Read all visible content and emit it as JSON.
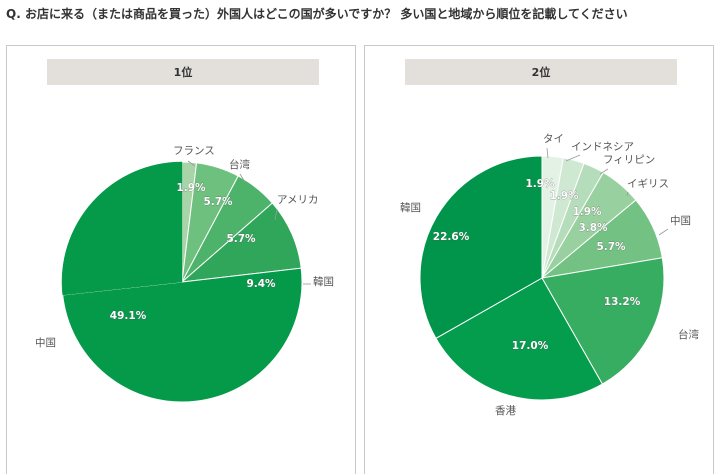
{
  "question": "Q. お店に来る（または商品を買った）外国人はどこの国が多いですか？ 多い国と地域から順位を記載してください",
  "panels": [
    {
      "header": "1位"
    },
    {
      "header": "2位"
    }
  ],
  "chart_data": [
    {
      "type": "pie",
      "title": "1位",
      "start": "12 o'clock",
      "direction": "clockwise",
      "slices": [
        {
          "label": "フランス",
          "value": 1.9,
          "value_label": "1.9%",
          "color": "#a8d5a8"
        },
        {
          "label": "台湾",
          "value": 5.7,
          "value_label": "5.7%",
          "color": "#6dc07e"
        },
        {
          "label": "アメリカ",
          "value": 5.7,
          "value_label": "5.7%",
          "color": "#4db36a"
        },
        {
          "label": "韓国",
          "value": 9.4,
          "value_label": "9.4%",
          "color": "#2fa65a"
        },
        {
          "label": "中国",
          "value": 49.1,
          "value_label": "49.1%",
          "color": "#05994a"
        }
      ]
    },
    {
      "type": "pie",
      "title": "2位",
      "start": "12 o'clock",
      "direction": "clockwise",
      "slices": [
        {
          "label": "タイ",
          "value": 1.9,
          "value_label": "1.9%",
          "color": "#e4f2e6"
        },
        {
          "label": "インドネシア",
          "value": 1.9,
          "value_label": "1.9%",
          "color": "#cfe8d2"
        },
        {
          "label": "フィリピン",
          "value": 1.9,
          "value_label": "1.9%",
          "color": "#b6ddbb"
        },
        {
          "label": "イギリス",
          "value": 3.8,
          "value_label": "3.8%",
          "color": "#98d09f"
        },
        {
          "label": "中国",
          "value": 5.7,
          "value_label": "5.7%",
          "color": "#74c184"
        },
        {
          "label": "台湾",
          "value": 13.2,
          "value_label": "13.2%",
          "color": "#37ad62"
        },
        {
          "label": "香港",
          "value": 17.0,
          "value_label": "17.0%",
          "color": "#049d4e"
        },
        {
          "label": "韓国",
          "value": 22.6,
          "value_label": "22.6%",
          "color": "#00954a"
        }
      ]
    }
  ]
}
